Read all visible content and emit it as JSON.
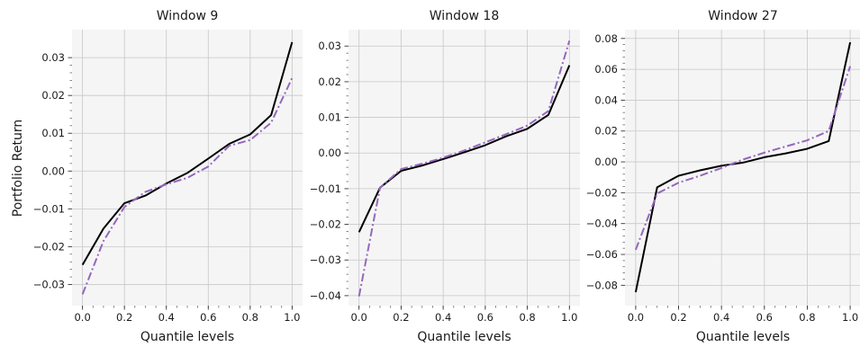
{
  "figure": {
    "ylabel": "Portfolio Return"
  },
  "colors": {
    "black_series": "#000000",
    "purple_series": "#9467bd",
    "grid": "#c8c8c8",
    "panel_bg": "#f5f5f5"
  },
  "chart_data": [
    {
      "type": "line",
      "title": "Window 9",
      "xlabel": "Quantile levels",
      "ylabel": "Portfolio Return",
      "x": [
        0.0,
        0.1,
        0.2,
        0.3,
        0.4,
        0.5,
        0.6,
        0.7,
        0.8,
        0.9,
        1.0
      ],
      "xticks": [
        0.0,
        0.2,
        0.4,
        0.6,
        0.8,
        1.0
      ],
      "xtick_labels": [
        "0.0",
        "0.2",
        "0.4",
        "0.6",
        "0.8",
        "1.0"
      ],
      "yticks": [
        -0.03,
        -0.02,
        -0.01,
        0.0,
        0.01,
        0.02,
        0.03
      ],
      "ytick_labels": [
        "−0.03",
        "−0.02",
        "−0.01",
        "0.00",
        "0.01",
        "0.02",
        "0.03"
      ],
      "xlim": [
        -0.05,
        1.05
      ],
      "ylim": [
        -0.0356,
        0.0374
      ],
      "grid": true,
      "series": [
        {
          "style": "solid",
          "color": "#000000",
          "values": [
            -0.0248,
            -0.0152,
            -0.0085,
            -0.0065,
            -0.0033,
            -0.0005,
            0.0033,
            0.0072,
            0.0097,
            0.0148,
            0.0341
          ]
        },
        {
          "style": "dashdot",
          "color": "#9467bd",
          "values": [
            -0.0326,
            -0.0185,
            -0.0095,
            -0.0055,
            -0.0035,
            -0.0018,
            0.0012,
            0.0067,
            0.0082,
            0.0128,
            0.0246
          ]
        }
      ]
    },
    {
      "type": "line",
      "title": "Window 18",
      "xlabel": "Quantile levels",
      "x": [
        0.0,
        0.1,
        0.2,
        0.3,
        0.4,
        0.5,
        0.6,
        0.7,
        0.8,
        0.9,
        1.0
      ],
      "xticks": [
        0.0,
        0.2,
        0.4,
        0.6,
        0.8,
        1.0
      ],
      "xtick_labels": [
        "0.0",
        "0.2",
        "0.4",
        "0.6",
        "0.8",
        "1.0"
      ],
      "yticks": [
        -0.04,
        -0.03,
        -0.02,
        -0.01,
        0.0,
        0.01,
        0.02,
        0.03
      ],
      "ytick_labels": [
        "−0.04",
        "−0.03",
        "−0.02",
        "−0.01",
        "0.00",
        "0.01",
        "0.02",
        "0.03"
      ],
      "xlim": [
        -0.05,
        1.05
      ],
      "ylim": [
        -0.0428,
        0.0346
      ],
      "grid": true,
      "series": [
        {
          "style": "solid",
          "color": "#000000",
          "values": [
            -0.0222,
            -0.0097,
            -0.005,
            -0.0035,
            -0.0017,
            0.0002,
            0.0022,
            0.0047,
            0.0068,
            0.0107,
            0.0246
          ]
        },
        {
          "style": "dashdot",
          "color": "#9467bd",
          "values": [
            -0.0402,
            -0.0097,
            -0.0045,
            -0.003,
            -0.0013,
            0.0007,
            0.003,
            0.0053,
            0.0077,
            0.0118,
            0.0315
          ]
        }
      ]
    },
    {
      "type": "line",
      "title": "Window 27",
      "xlabel": "Quantile levels",
      "x": [
        0.0,
        0.1,
        0.2,
        0.3,
        0.4,
        0.5,
        0.6,
        0.7,
        0.8,
        0.9,
        1.0
      ],
      "xticks": [
        0.0,
        0.2,
        0.4,
        0.6,
        0.8,
        1.0
      ],
      "xtick_labels": [
        "0.0",
        "0.2",
        "0.4",
        "0.6",
        "0.8",
        "1.0"
      ],
      "yticks": [
        -0.08,
        -0.06,
        -0.04,
        -0.02,
        0.0,
        0.02,
        0.04,
        0.06,
        0.08
      ],
      "ytick_labels": [
        "−0.08",
        "−0.06",
        "−0.04",
        "−0.02",
        "0.00",
        "0.02",
        "0.04",
        "0.06",
        "0.08"
      ],
      "xlim": [
        -0.05,
        1.05
      ],
      "ylim": [
        -0.0932,
        0.0857
      ],
      "grid": true,
      "series": [
        {
          "style": "solid",
          "color": "#000000",
          "values": [
            -0.0845,
            -0.0165,
            -0.009,
            -0.0055,
            -0.0025,
            -0.0005,
            0.003,
            0.0055,
            0.0085,
            0.0135,
            0.0775
          ]
        },
        {
          "style": "dashdot",
          "color": "#9467bd",
          "values": [
            -0.057,
            -0.0205,
            -0.0135,
            -0.009,
            -0.004,
            0.0015,
            0.006,
            0.01,
            0.014,
            0.02,
            0.062
          ]
        }
      ]
    }
  ]
}
